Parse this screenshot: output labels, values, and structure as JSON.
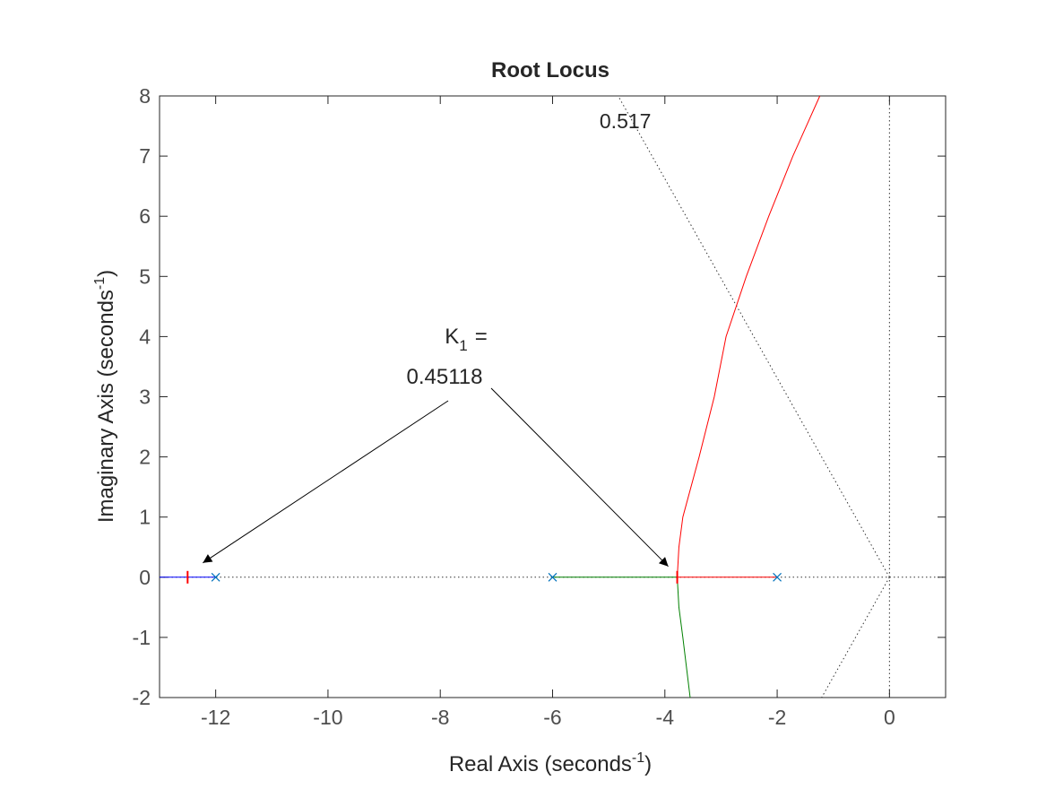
{
  "chart_data": {
    "type": "line",
    "title": "Root Locus",
    "x_label": {
      "text": "Real Axis (seconds",
      "superscript": "-1",
      "suffix": ")"
    },
    "y_label": {
      "text": "Imaginary Axis (seconds",
      "superscript": "-1",
      "suffix": ")"
    },
    "xlim": [
      -13,
      1
    ],
    "ylim": [
      -2,
      8
    ],
    "xticks": [
      -12,
      -10,
      -8,
      -6,
      -4,
      -2,
      0
    ],
    "yticks": [
      -2,
      -1,
      0,
      1,
      2,
      3,
      4,
      5,
      6,
      7,
      8
    ],
    "series": [
      {
        "color": "#0000ff",
        "x": [
          -12,
          -13
        ],
        "values": [
          0,
          0
        ]
      },
      {
        "color": "#008000",
        "x": [
          -6,
          -3.78,
          -3.75,
          -3.68,
          -3.55
        ],
        "values": [
          0,
          0,
          -0.5,
          -1,
          -2
        ]
      },
      {
        "color": "#ff0000",
        "x": [
          -2,
          -3.78,
          -3.75,
          -3.68,
          -3.39,
          -3.12,
          -2.91,
          -2.55,
          -2.15,
          -1.72,
          -1.24
        ],
        "values": [
          0,
          0,
          0.5,
          1,
          2,
          3,
          4,
          5,
          6,
          7,
          8
        ]
      }
    ],
    "poles": {
      "color": "#0072bd",
      "x": [
        -12,
        -6,
        -2
      ],
      "values": [
        0,
        0,
        0
      ]
    },
    "gain_markers": {
      "color": "#ff0000",
      "x": [
        -12.5,
        -3.78
      ],
      "values": [
        0,
        0
      ]
    },
    "damping_label": 0.517,
    "annotation": {
      "symbol": "K",
      "subscript": "1",
      "equals": "=",
      "value": 0.45118
    }
  }
}
